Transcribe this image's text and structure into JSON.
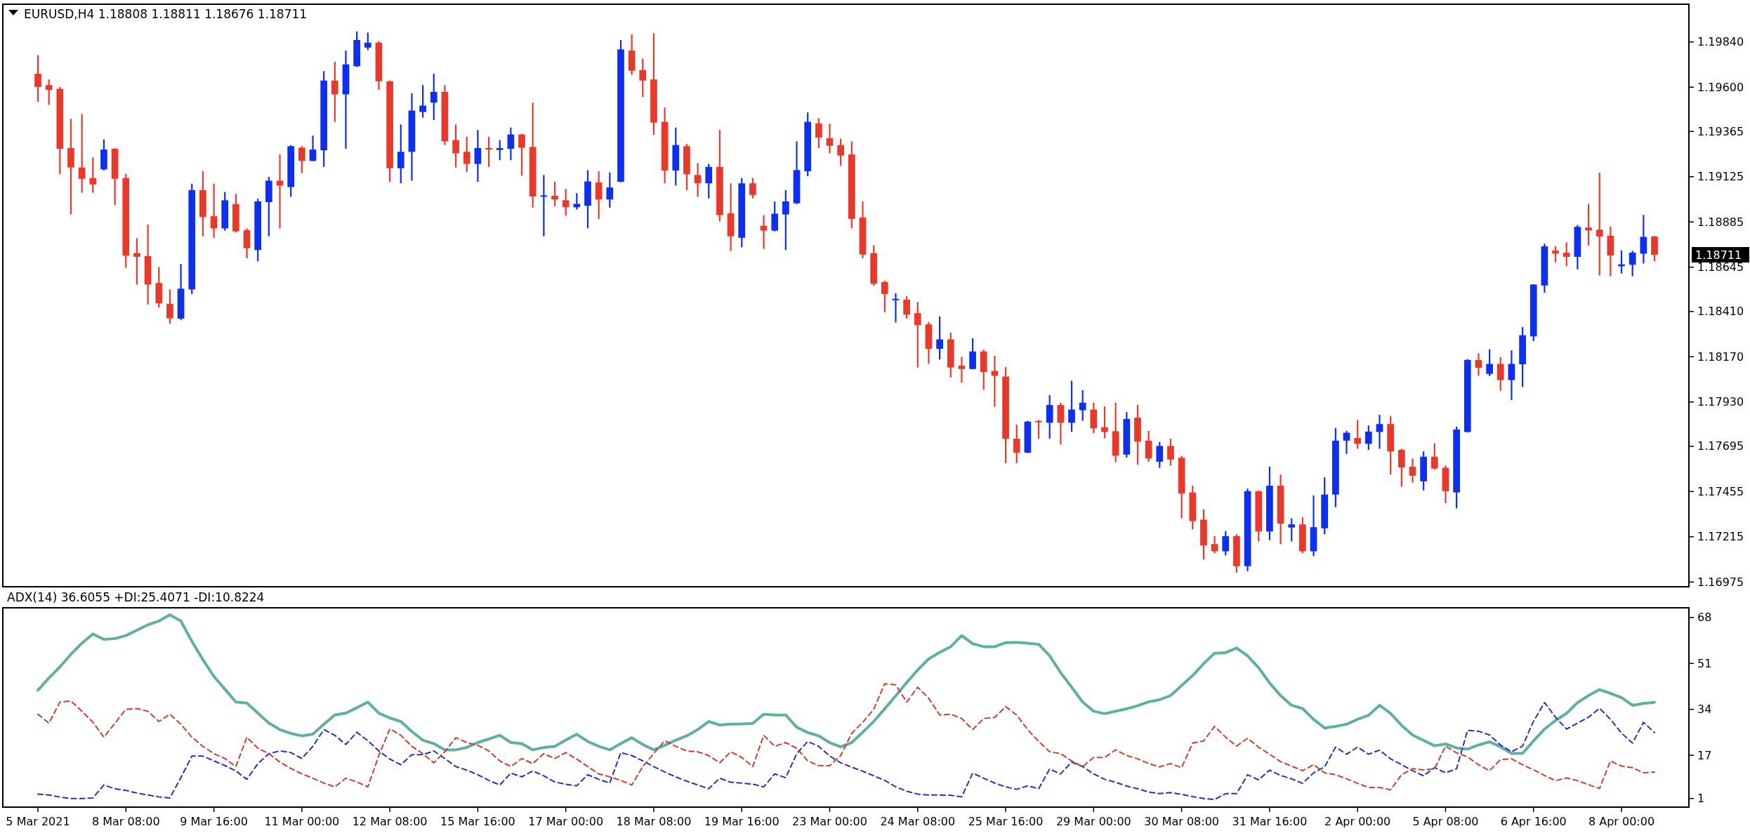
{
  "chart_data": [
    {
      "type": "candlestick",
      "title": "EURUSD,H4  1.18808 1.18811 1.18676 1.18711",
      "ohlc": [
        [
          1.19671,
          1.1977,
          1.19522,
          1.19601
        ],
        [
          1.19611,
          1.19641,
          1.19506,
          1.19585
        ],
        [
          1.19591,
          1.19601,
          1.19138,
          1.19273
        ],
        [
          1.19277,
          1.19432,
          1.18925,
          1.19174
        ],
        [
          1.19174,
          1.19458,
          1.1904,
          1.19114
        ],
        [
          1.19118,
          1.19227,
          1.1904,
          1.19084
        ],
        [
          1.19164,
          1.19323,
          1.19158,
          1.19269
        ],
        [
          1.19273,
          1.19277,
          1.18975,
          1.19114
        ],
        [
          1.19118,
          1.1914,
          1.18642,
          1.18706
        ],
        [
          1.1872,
          1.18799,
          1.18553,
          1.187
        ],
        [
          1.18704,
          1.18871,
          1.18447,
          1.18553
        ],
        [
          1.18561,
          1.18646,
          1.18431,
          1.18453
        ],
        [
          1.18451,
          1.18527,
          1.18346,
          1.18374
        ],
        [
          1.18372,
          1.18662,
          1.18364,
          1.18531
        ],
        [
          1.18527,
          1.19088,
          1.18503,
          1.19054
        ],
        [
          1.19054,
          1.19154,
          1.18809,
          1.18911
        ],
        [
          1.18915,
          1.19088,
          1.18801,
          1.18851
        ],
        [
          1.18851,
          1.19044,
          1.18839,
          1.19
        ],
        [
          1.1898,
          1.19034,
          1.18829,
          1.18835
        ],
        [
          1.18841,
          1.18851,
          1.18692,
          1.18746
        ],
        [
          1.18736,
          1.19008,
          1.18676,
          1.18994
        ],
        [
          1.1899,
          1.19124,
          1.18809,
          1.19104
        ],
        [
          1.19104,
          1.19243,
          1.18851,
          1.19078
        ],
        [
          1.1907,
          1.19293,
          1.19018,
          1.19287
        ],
        [
          1.19279,
          1.19287,
          1.19144,
          1.19209
        ],
        [
          1.19209,
          1.19343,
          1.19207,
          1.19269
        ],
        [
          1.19265,
          1.19685,
          1.19177,
          1.19635
        ],
        [
          1.19635,
          1.19735,
          1.19416,
          1.19562
        ],
        [
          1.19562,
          1.19794,
          1.19273,
          1.19721
        ],
        [
          1.19711,
          1.19896,
          1.19707,
          1.1985
        ],
        [
          1.1981,
          1.1989,
          1.19796,
          1.19836
        ],
        [
          1.19836,
          1.19844,
          1.19585,
          1.19631
        ],
        [
          1.19631,
          1.19635,
          1.19098,
          1.1917
        ],
        [
          1.1917,
          1.19402,
          1.1909,
          1.19257
        ],
        [
          1.19257,
          1.19568,
          1.19104,
          1.19476
        ],
        [
          1.19468,
          1.19611,
          1.19438,
          1.19502
        ],
        [
          1.19518,
          1.19671,
          1.19426,
          1.19575
        ],
        [
          1.19575,
          1.19611,
          1.19293,
          1.19313
        ],
        [
          1.19319,
          1.19402,
          1.19174,
          1.19249
        ],
        [
          1.19257,
          1.19337,
          1.1915,
          1.19193
        ],
        [
          1.19193,
          1.19373,
          1.19098,
          1.19277
        ],
        [
          1.19277,
          1.19337,
          1.19177,
          1.19273
        ],
        [
          1.19267,
          1.19319,
          1.19213,
          1.19277
        ],
        [
          1.19273,
          1.19386,
          1.19213,
          1.19349
        ],
        [
          1.19349,
          1.19353,
          1.1913,
          1.19279
        ],
        [
          1.19283,
          1.19518,
          1.18961,
          1.1902
        ],
        [
          1.1902,
          1.19134,
          1.18809,
          1.19026
        ],
        [
          1.19024,
          1.19098,
          1.18969,
          1.19004
        ],
        [
          1.19,
          1.1906,
          1.18919,
          1.18963
        ],
        [
          1.18963,
          1.19038,
          1.18951,
          1.18981
        ],
        [
          1.18971,
          1.1916,
          1.18851,
          1.191
        ],
        [
          1.19094,
          1.19154,
          1.18901,
          1.19004
        ],
        [
          1.19004,
          1.19148,
          1.18961,
          1.19068
        ],
        [
          1.19098,
          1.1985,
          1.19096,
          1.198
        ],
        [
          1.19794,
          1.1988,
          1.19665,
          1.19687
        ],
        [
          1.19691,
          1.19751,
          1.19548,
          1.19635
        ],
        [
          1.19641,
          1.19886,
          1.19347,
          1.19412
        ],
        [
          1.19416,
          1.19492,
          1.1909,
          1.19158
        ],
        [
          1.19158,
          1.19386,
          1.19078,
          1.19293
        ],
        [
          1.19287,
          1.19299,
          1.19054,
          1.19138
        ],
        [
          1.19134,
          1.19197,
          1.19018,
          1.1909
        ],
        [
          1.1909,
          1.19193,
          1.1901,
          1.19177
        ],
        [
          1.19177,
          1.19373,
          1.18889,
          1.18921
        ],
        [
          1.18931,
          1.1909,
          1.1873,
          1.18809
        ],
        [
          1.18801,
          1.19118,
          1.1875,
          1.1909
        ],
        [
          1.1909,
          1.19118,
          1.1901,
          1.19028
        ],
        [
          1.18865,
          1.18921,
          1.18742,
          1.18839
        ],
        [
          1.18839,
          1.18994,
          1.18835,
          1.18929
        ],
        [
          1.18925,
          1.19054,
          1.18736,
          1.18994
        ],
        [
          1.18984,
          1.19313,
          1.1898,
          1.1916
        ],
        [
          1.19154,
          1.19466,
          1.19128,
          1.19416
        ],
        [
          1.19408,
          1.19436,
          1.19277,
          1.19333
        ],
        [
          1.19329,
          1.19406,
          1.19249,
          1.19289
        ],
        [
          1.19293,
          1.19327,
          1.19183,
          1.19237
        ],
        [
          1.19243,
          1.19313,
          1.18851,
          1.18901
        ],
        [
          1.18909,
          1.18994,
          1.18692,
          1.18712
        ],
        [
          1.1872,
          1.18762,
          1.18547,
          1.18557
        ],
        [
          1.18567,
          1.18573,
          1.18407,
          1.18503
        ],
        [
          1.18471,
          1.18507,
          1.18352,
          1.18477
        ],
        [
          1.18473,
          1.18491,
          1.18372,
          1.18393
        ],
        [
          1.18401,
          1.18461,
          1.18113,
          1.18338
        ],
        [
          1.18342,
          1.18354,
          1.18133,
          1.18212
        ],
        [
          1.18212,
          1.18384,
          1.18155,
          1.18262
        ],
        [
          1.18262,
          1.18298,
          1.18059,
          1.18113
        ],
        [
          1.18123,
          1.18169,
          1.18033,
          1.18105
        ],
        [
          1.18105,
          1.18268,
          1.18103,
          1.18198
        ],
        [
          1.18198,
          1.18208,
          1.17995,
          1.18089
        ],
        [
          1.18095,
          1.18175,
          1.17904,
          1.18069
        ],
        [
          1.18065,
          1.18115,
          1.17605,
          1.17735
        ],
        [
          1.17735,
          1.1781,
          1.17605,
          1.17661
        ],
        [
          1.17661,
          1.1783,
          1.17659,
          1.17826
        ],
        [
          1.1783,
          1.17834,
          1.17735,
          1.17824
        ],
        [
          1.1782,
          1.17966,
          1.17735,
          1.17914
        ],
        [
          1.17914,
          1.17926,
          1.17705,
          1.1782
        ],
        [
          1.1782,
          1.18043,
          1.17771,
          1.1789
        ],
        [
          1.17886,
          1.17993,
          1.1783,
          1.17926
        ],
        [
          1.1789,
          1.17926,
          1.17765,
          1.1779
        ],
        [
          1.17796,
          1.17906,
          1.17737,
          1.17771
        ],
        [
          1.17775,
          1.17926,
          1.17611,
          1.17645
        ],
        [
          1.17651,
          1.17876,
          1.17635,
          1.1784
        ],
        [
          1.17847,
          1.17915,
          1.17598,
          1.1772
        ],
        [
          1.17725,
          1.17777,
          1.17613,
          1.1763
        ],
        [
          1.17613,
          1.17718,
          1.17581,
          1.17697
        ],
        [
          1.17697,
          1.17735,
          1.17592,
          1.17625
        ],
        [
          1.17634,
          1.17644,
          1.17313,
          1.17444
        ],
        [
          1.1745,
          1.17486,
          1.17254,
          1.17298
        ],
        [
          1.17306,
          1.17361,
          1.17095,
          1.17169
        ],
        [
          1.17176,
          1.17218,
          1.17127,
          1.17138
        ],
        [
          1.17138,
          1.17245,
          1.17116,
          1.17218
        ],
        [
          1.17218,
          1.17228,
          1.17024,
          1.17059
        ],
        [
          1.17059,
          1.17471,
          1.17032,
          1.17457
        ],
        [
          1.17457,
          1.1746,
          1.1719,
          1.17243
        ],
        [
          1.17243,
          1.17587,
          1.17197,
          1.17486
        ],
        [
          1.17486,
          1.17545,
          1.17176,
          1.17285
        ],
        [
          1.17264,
          1.17313,
          1.1719,
          1.17281
        ],
        [
          1.17281,
          1.17319,
          1.17127,
          1.17138
        ],
        [
          1.17138,
          1.17435,
          1.17112,
          1.17266
        ],
        [
          1.1726,
          1.1753,
          1.17228,
          1.17439
        ],
        [
          1.17439,
          1.17792,
          1.17372,
          1.17725
        ],
        [
          1.17725,
          1.17777,
          1.17655,
          1.17767
        ],
        [
          1.17739,
          1.17835,
          1.17682,
          1.17708
        ],
        [
          1.17708,
          1.17805,
          1.17676,
          1.17773
        ],
        [
          1.17771,
          1.17862,
          1.17682,
          1.17813
        ],
        [
          1.17813,
          1.17856,
          1.17545,
          1.17668
        ],
        [
          1.17676,
          1.17682,
          1.17482,
          1.17583
        ],
        [
          1.17587,
          1.1763,
          1.17503,
          1.17539
        ],
        [
          1.17509,
          1.17668,
          1.17461,
          1.1764
        ],
        [
          1.1764,
          1.1771,
          1.17571,
          1.17577
        ],
        [
          1.17581,
          1.17594,
          1.17393,
          1.17457
        ],
        [
          1.1745,
          1.17799,
          1.17366,
          1.17784
        ],
        [
          1.17771,
          1.18158,
          1.17768,
          1.18153
        ],
        [
          1.18153,
          1.18189,
          1.18069,
          1.18111
        ],
        [
          1.18079,
          1.1821,
          1.18068,
          1.18132
        ],
        [
          1.18132,
          1.18168,
          1.17989,
          1.18046
        ],
        [
          1.18046,
          1.18204,
          1.1794,
          1.18132
        ],
        [
          1.1813,
          1.18327,
          1.1801,
          1.18284
        ],
        [
          1.18278,
          1.18555,
          1.18253,
          1.18553
        ],
        [
          1.18548,
          1.1877,
          1.1851,
          1.18756
        ],
        [
          1.18734,
          1.18756,
          1.18671,
          1.18717
        ],
        [
          1.18722,
          1.18777,
          1.1865,
          1.187
        ],
        [
          1.187,
          1.18869,
          1.18633,
          1.18859
        ],
        [
          1.18855,
          1.18981,
          1.1876,
          1.1884
        ],
        [
          1.18844,
          1.19146,
          1.18601,
          1.18808
        ],
        [
          1.18812,
          1.18861,
          1.18597,
          1.18707
        ],
        [
          1.1865,
          1.18734,
          1.18612,
          1.1866
        ],
        [
          1.18658,
          1.18732,
          1.18597,
          1.18722
        ],
        [
          1.18717,
          1.18922,
          1.18665,
          1.18806
        ],
        [
          1.18808,
          1.18811,
          1.18676,
          1.18711
        ]
      ],
      "colors": [
        "#e8392a",
        "#e8392a",
        "#e8392a",
        "#e8392a",
        "#e8392a",
        "#e8392a",
        "#0c2ff0",
        "#e8392a",
        "#e8392a",
        "#e8392a",
        "#e8392a",
        "#e8392a",
        "#e8392a",
        "#0c2ff0",
        "#0c2ff0",
        "#e8392a",
        "#e8392a",
        "#0c2ff0",
        "#e8392a",
        "#e8392a",
        "#0c2ff0",
        "#0c2ff0",
        "#e8392a",
        "#0c2ff0",
        "#e8392a",
        "#0c2ff0",
        "#0c2ff0",
        "#e8392a",
        "#0c2ff0",
        "#0c2ff0",
        "#0c2ff0",
        "#e8392a",
        "#e8392a",
        "#0c2ff0",
        "#0c2ff0",
        "#0c2ff0",
        "#0c2ff0",
        "#e8392a",
        "#e8392a",
        "#e8392a",
        "#0c2ff0",
        "#e8392a",
        "#0c2ff0",
        "#0c2ff0",
        "#e8392a",
        "#e8392a",
        "#0c2ff0",
        "#e8392a",
        "#e8392a",
        "#0c2ff0",
        "#0c2ff0",
        "#e8392a",
        "#0c2ff0",
        "#0c2ff0",
        "#e8392a",
        "#e8392a",
        "#e8392a",
        "#e8392a",
        "#0c2ff0",
        "#e8392a",
        "#e8392a",
        "#0c2ff0",
        "#e8392a",
        "#e8392a",
        "#0c2ff0",
        "#e8392a",
        "#e8392a",
        "#0c2ff0",
        "#0c2ff0",
        "#0c2ff0",
        "#0c2ff0",
        "#e8392a",
        "#e8392a",
        "#e8392a",
        "#e8392a",
        "#e8392a",
        "#e8392a",
        "#e8392a",
        "#0c2ff0",
        "#e8392a",
        "#e8392a",
        "#e8392a",
        "#0c2ff0",
        "#e8392a",
        "#e8392a",
        "#0c2ff0",
        "#e8392a",
        "#e8392a",
        "#e8392a",
        "#e8392a",
        "#0c2ff0",
        "#e8392a",
        "#0c2ff0",
        "#e8392a",
        "#0c2ff0",
        "#0c2ff0",
        "#e8392a",
        "#e8392a",
        "#e8392a",
        "#0c2ff0",
        "#e8392a",
        "#e8392a",
        "#0c2ff0",
        "#e8392a",
        "#e8392a",
        "#e8392a",
        "#e8392a",
        "#e8392a",
        "#0c2ff0",
        "#e8392a",
        "#0c2ff0",
        "#e8392a",
        "#0c2ff0",
        "#e8392a",
        "#0c2ff0",
        "#e8392a",
        "#0c2ff0",
        "#0c2ff0",
        "#0c2ff0",
        "#0c2ff0",
        "#e8392a",
        "#0c2ff0",
        "#0c2ff0",
        "#e8392a",
        "#e8392a",
        "#e8392a",
        "#0c2ff0",
        "#e8392a",
        "#e8392a",
        "#0c2ff0",
        "#0c2ff0",
        "#e8392a",
        "#0c2ff0",
        "#e8392a",
        "#0c2ff0",
        "#0c2ff0",
        "#0c2ff0",
        "#0c2ff0",
        "#e8392a",
        "#e8392a",
        "#0c2ff0",
        "#e8392a",
        "#e8392a",
        "#e8392a",
        "#0c2ff0",
        "#0c2ff0",
        "#0c2ff0",
        "#e8392a"
      ],
      "ylim": [
        1.1695,
        1.2004
      ],
      "yticks": [
        1.16975,
        1.17215,
        1.17455,
        1.17695,
        {
          "value": 1.1793,
          "label": "1.17930"
        },
        {
          "value": 1.1817,
          "label": "1.18170"
        },
        {
          "value": 1.1841,
          "label": "1.18410"
        },
        1.18645,
        1.18885,
        1.19125,
        1.19365,
        {
          "value": 1.196,
          "label": "1.19600"
        },
        {
          "value": 1.1984,
          "label": "1.19840"
        }
      ],
      "tick_labels": "y",
      "annotations": [
        "1.18711"
      ]
    },
    {
      "type": "line",
      "title": "ADX(14) 36.6055 +DI:25.4071 -DI:10.8224",
      "categories": [
        "5 Mar 2021",
        null,
        null,
        null,
        null,
        null,
        null,
        null,
        "8 Mar 08:00",
        null,
        null,
        null,
        null,
        null,
        null,
        null,
        "9 Mar 16:00",
        null,
        null,
        null,
        null,
        null,
        null,
        null,
        "11 Mar 00:00",
        null,
        null,
        null,
        null,
        null,
        null,
        null,
        "12 Mar 08:00",
        null,
        null,
        null,
        null,
        null,
        null,
        null,
        "15 Mar 16:00",
        null,
        null,
        null,
        null,
        null,
        null,
        null,
        "17 Mar 00:00",
        null,
        null,
        null,
        null,
        null,
        null,
        null,
        "18 Mar 08:00",
        null,
        null,
        null,
        null,
        null,
        null,
        null,
        "19 Mar 16:00",
        null,
        null,
        null,
        null,
        null,
        null,
        null,
        "23 Mar 00:00",
        null,
        null,
        null,
        null,
        null,
        null,
        null,
        "24 Mar 08:00",
        null,
        null,
        null,
        null,
        null,
        null,
        null,
        "25 Mar 16:00",
        null,
        null,
        null,
        null,
        null,
        null,
        null,
        "29 Mar 00:00",
        null,
        null,
        null,
        null,
        null,
        null,
        null,
        "30 Mar 08:00",
        null,
        null,
        null,
        null,
        null,
        null,
        null,
        "31 Mar 16:00",
        null,
        null,
        null,
        null,
        null,
        null,
        null,
        "2 Apr 00:00",
        null,
        null,
        null,
        null,
        null,
        null,
        null,
        "5 Apr 08:00",
        null,
        null,
        null,
        null,
        null,
        null,
        null,
        "6 Apr 16:00",
        null,
        null,
        null,
        null,
        null,
        null,
        null,
        "8 Apr 00:00",
        null,
        null,
        null
      ],
      "series": [
        {
          "color": "#5fb0a3",
          "line_style": "solid",
          "values": [
            41.1,
            45.6,
            49.7,
            54.4,
            58.5,
            61.9,
            59.9,
            60.2,
            61.3,
            63.3,
            65.3,
            66.7,
            69.0,
            66.7,
            59.2,
            52.4,
            46.2,
            41.5,
            36.7,
            36.3,
            32.6,
            28.9,
            26.5,
            25.1,
            24.2,
            24.8,
            28.5,
            31.9,
            32.6,
            34.6,
            36.7,
            32.6,
            30.8,
            29.5,
            25.8,
            22.6,
            21.3,
            19.0,
            19.0,
            19.9,
            21.7,
            23.0,
            24.4,
            21.7,
            21.3,
            19.0,
            19.9,
            20.3,
            22.6,
            24.8,
            22.1,
            20.3,
            19.0,
            21.3,
            23.5,
            21.0,
            19.0,
            20.7,
            22.6,
            24.2,
            26.5,
            29.5,
            28.2,
            28.5,
            28.6,
            28.8,
            32.2,
            31.9,
            31.9,
            27.4,
            25.4,
            24.2,
            21.7,
            20.1,
            21.7,
            25.5,
            29.5,
            34.2,
            39.0,
            43.9,
            48.6,
            52.7,
            55.1,
            57.2,
            61.3,
            58.3,
            57.2,
            57.2,
            58.7,
            58.8,
            58.5,
            58.1,
            53.8,
            47.6,
            42.2,
            36.7,
            33.3,
            32.4,
            33.3,
            34.2,
            35.3,
            36.8,
            37.6,
            39.1,
            42.8,
            46.5,
            50.9,
            54.8,
            55.0,
            56.7,
            53.8,
            49.4,
            43.8,
            39.1,
            35.5,
            34.3,
            30.3,
            27.1,
            27.7,
            28.5,
            30.3,
            31.8,
            35.5,
            32.5,
            28.1,
            24.5,
            22.5,
            20.5,
            21.2,
            19.7,
            19.3,
            20.8,
            22.0,
            20.1,
            17.7,
            17.7,
            22.3,
            26.7,
            29.9,
            32.5,
            36.5,
            39.1,
            41.3,
            39.9,
            38.4,
            35.5,
            36.2,
            36.6
          ]
        },
        {
          "color": "#2233b0",
          "line_style": "dashed",
          "values": [
            2.6,
            2.3,
            1.5,
            1.0,
            1.0,
            1.2,
            6.0,
            4.6,
            4.0,
            3.0,
            2.3,
            1.6,
            1.2,
            8.7,
            16.7,
            16.7,
            14.9,
            13.2,
            11.2,
            8.1,
            13.9,
            17.6,
            18.6,
            18.0,
            15.8,
            20.3,
            26.5,
            24.4,
            21.0,
            25.5,
            22.4,
            18.6,
            15.6,
            13.5,
            17.2,
            17.2,
            18.6,
            15.8,
            12.8,
            11.5,
            9.8,
            7.7,
            6.0,
            10.4,
            9.0,
            11.2,
            9.4,
            7.1,
            6.3,
            5.7,
            9.8,
            8.1,
            6.7,
            18.0,
            16.9,
            14.9,
            12.8,
            10.8,
            9.0,
            7.4,
            6.0,
            4.6,
            8.5,
            7.0,
            6.7,
            6.3,
            5.3,
            10.1,
            8.7,
            17.6,
            22.1,
            20.3,
            16.7,
            14.2,
            12.6,
            11.1,
            9.4,
            7.7,
            5.3,
            3.7,
            2.6,
            2.3,
            2.3,
            2.2,
            1.6,
            10.4,
            8.5,
            6.7,
            5.3,
            4.4,
            5.7,
            4.6,
            11.9,
            10.1,
            14.5,
            12.8,
            10.1,
            8.1,
            7.0,
            5.6,
            4.6,
            3.4,
            2.8,
            3.2,
            2.5,
            1.7,
            1.0,
            0.6,
            2.8,
            2.8,
            9.8,
            7.9,
            11.5,
            9.5,
            8.3,
            6.6,
            10.5,
            12.7,
            20.0,
            17.4,
            20.0,
            17.4,
            18.9,
            15.7,
            13.5,
            11.3,
            9.4,
            12.4,
            10.5,
            12.0,
            26.2,
            25.9,
            24.5,
            20.8,
            18.3,
            20.4,
            29.6,
            36.5,
            31.1,
            26.7,
            28.9,
            31.1,
            34.4,
            30.3,
            25.2,
            21.5,
            29.2,
            25.4
          ]
        },
        {
          "color": "#c8412f",
          "line_style": "dashed",
          "values": [
            32.2,
            28.9,
            36.7,
            37.1,
            33.3,
            29.2,
            23.7,
            28.9,
            34.0,
            34.3,
            33.3,
            29.5,
            32.2,
            28.5,
            23.7,
            20.3,
            17.6,
            15.8,
            12.8,
            23.7,
            19.6,
            17.6,
            14.5,
            12.1,
            10.1,
            8.5,
            6.7,
            5.3,
            8.5,
            7.1,
            5.3,
            16.9,
            26.8,
            24.4,
            20.3,
            17.6,
            14.2,
            18.3,
            23.5,
            21.7,
            20.7,
            18.6,
            14.9,
            12.8,
            15.8,
            13.9,
            17.6,
            15.8,
            18.0,
            15.6,
            12.8,
            10.1,
            9.0,
            7.7,
            6.0,
            12.8,
            17.6,
            22.4,
            20.3,
            18.6,
            18.3,
            16.9,
            14.2,
            18.3,
            16.2,
            12.8,
            24.4,
            20.3,
            21.7,
            19.6,
            14.9,
            13.2,
            13.1,
            16.9,
            25.1,
            29.2,
            34.0,
            43.5,
            43.1,
            36.7,
            42.2,
            38.1,
            31.9,
            32.2,
            30.6,
            26.5,
            30.6,
            31.0,
            35.0,
            31.9,
            26.5,
            22.1,
            18.3,
            17.6,
            14.9,
            12.8,
            16.2,
            16.2,
            19.0,
            16.9,
            15.7,
            13.9,
            12.7,
            13.9,
            12.4,
            21.5,
            22.3,
            27.7,
            23.7,
            20.4,
            23.3,
            20.0,
            17.4,
            14.6,
            13.0,
            11.3,
            13.5,
            10.5,
            9.8,
            8.3,
            6.6,
            5.1,
            5.1,
            4.2,
            9.8,
            12.0,
            11.6,
            12.0,
            20.4,
            17.9,
            16.4,
            13.5,
            11.3,
            15.4,
            15.7,
            13.5,
            11.6,
            9.5,
            7.6,
            8.6,
            7.6,
            6.1,
            4.7,
            14.9,
            13.0,
            12.4,
            10.5,
            10.8
          ]
        }
      ],
      "ylim": [
        -2.2,
        71.6
      ],
      "yticks": [
        1,
        17,
        34,
        51,
        68
      ]
    }
  ]
}
